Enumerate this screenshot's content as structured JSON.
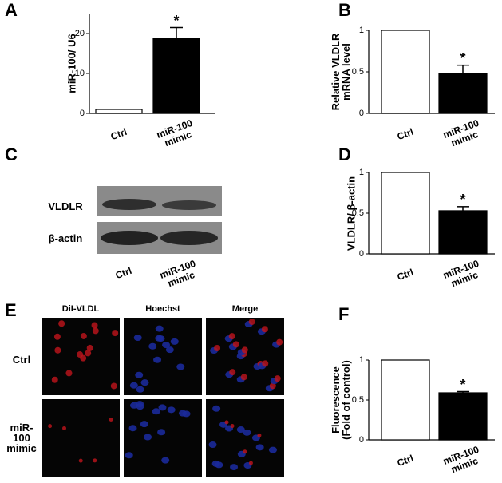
{
  "chart_data": [
    {
      "type": "bar",
      "panel": "A",
      "ylabel": "miR-100/ U6",
      "annotation": "*",
      "categories": [
        "Ctrl",
        "miR-100 mimic"
      ],
      "values": [
        1,
        18.8
      ],
      "errors": [
        null,
        2.7
      ],
      "colors": [
        "#ffffff",
        "#000000"
      ],
      "ylim": [
        0,
        25
      ],
      "yticks": [
        0,
        10,
        20
      ]
    },
    {
      "type": "bar",
      "panel": "B",
      "ylabel": "Relative VLDLR mRNA level",
      "annotation": "*",
      "categories": [
        "Ctrl",
        "miR-100 mimic"
      ],
      "values": [
        1,
        0.48
      ],
      "errors": [
        null,
        0.1
      ],
      "colors": [
        "#ffffff",
        "#000000"
      ],
      "ylim": [
        0,
        1
      ],
      "yticks": [
        0,
        0.5,
        1
      ]
    },
    {
      "type": "bar",
      "panel": "D",
      "ylabel": "VLDLR/ β-actin",
      "annotation": "*",
      "categories": [
        "Ctrl",
        "miR-100 mimic"
      ],
      "values": [
        1,
        0.53
      ],
      "errors": [
        null,
        0.05
      ],
      "colors": [
        "#ffffff",
        "#000000"
      ],
      "ylim": [
        0,
        1
      ],
      "yticks": [
        0,
        0.5,
        1
      ]
    },
    {
      "type": "bar",
      "panel": "F",
      "ylabel": "Fluorescence (Fold of control)",
      "annotation": "*",
      "categories": [
        "Ctrl",
        "miR-100 mimic"
      ],
      "values": [
        1,
        0.59
      ],
      "errors": [
        null,
        0.015
      ],
      "colors": [
        "#ffffff",
        "#000000"
      ],
      "ylim": [
        0,
        1
      ],
      "yticks": [
        0,
        0.5,
        1
      ]
    }
  ],
  "blot": {
    "panel": "C",
    "rows": [
      "VLDLR",
      "β-actin"
    ],
    "lanes": [
      "Ctrl",
      "miR-100 mimic"
    ]
  },
  "imaging": {
    "panel": "E",
    "columns": [
      "DiI-VLDL",
      "Hoechst",
      "Merge"
    ],
    "rows": [
      "Ctrl",
      "miR-100 mimic"
    ]
  }
}
